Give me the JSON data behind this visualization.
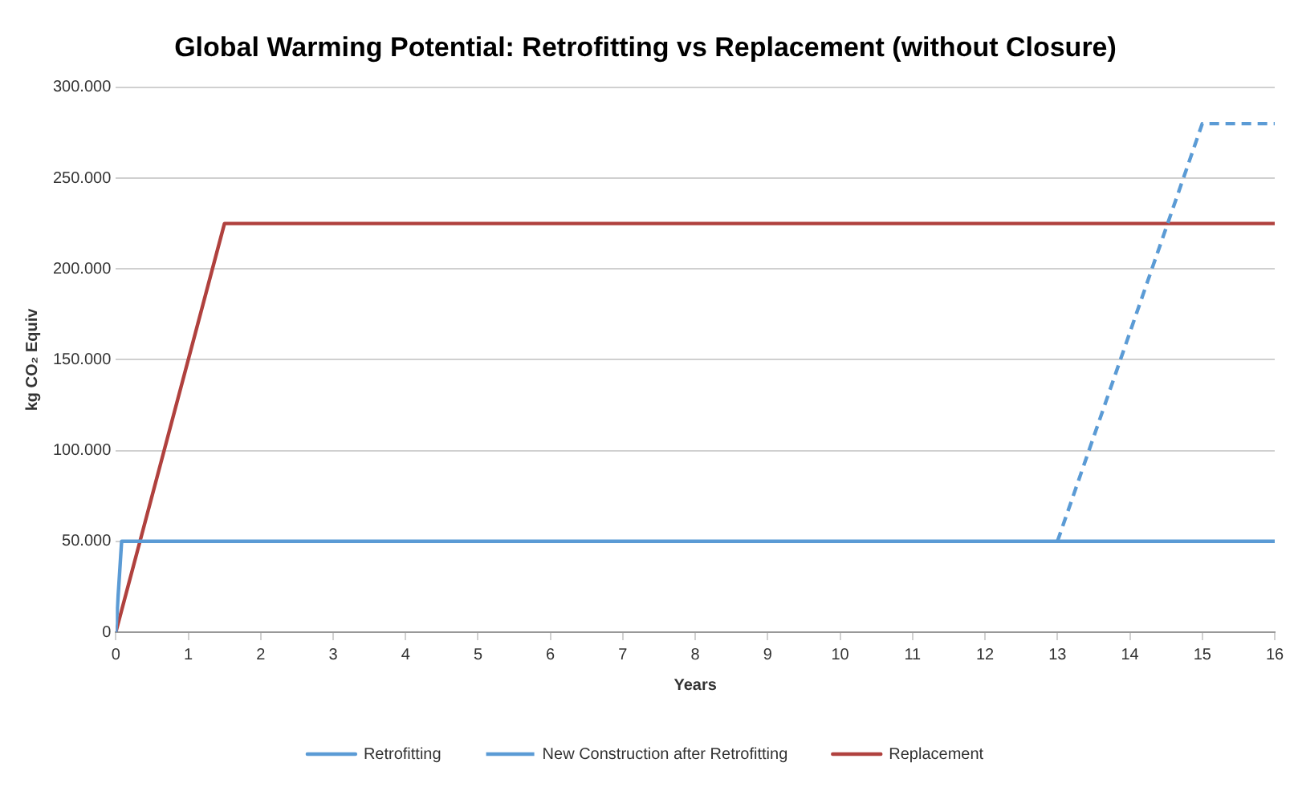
{
  "chart_data": {
    "type": "line",
    "title": "Global Warming Potential: Retrofitting vs Replacement (without Closure)",
    "xlabel": "Years",
    "ylabel": "kg CO₂ Equiv",
    "xlim": [
      0,
      16
    ],
    "xticks": [
      0,
      1,
      2,
      3,
      4,
      5,
      6,
      7,
      8,
      9,
      10,
      11,
      12,
      13,
      14,
      15,
      16
    ],
    "ylim": [
      0,
      300000
    ],
    "yticks": [
      {
        "value": 0,
        "label": "0"
      },
      {
        "value": 50000,
        "label": "50.000"
      },
      {
        "value": 100000,
        "label": "100.000"
      },
      {
        "value": 150000,
        "label": "150.000"
      },
      {
        "value": 200000,
        "label": "200.000"
      },
      {
        "value": 250000,
        "label": "250.000"
      },
      {
        "value": 300000,
        "label": "300.000"
      }
    ],
    "grid": "y",
    "legend": "bottom",
    "marker": "none",
    "series": [
      {
        "name": "Retrofitting",
        "color": "#5b9bd5",
        "line_style": "solid",
        "x": [
          0,
          0.08,
          16
        ],
        "values": [
          0,
          50000,
          50000
        ]
      },
      {
        "name": "New Construction after Retrofitting",
        "color": "#5b9bd5",
        "line_style": "dashed",
        "x": [
          13,
          15,
          16
        ],
        "values": [
          50000,
          280000,
          280000
        ]
      },
      {
        "name": "Replacement",
        "color": "#b0413e",
        "line_style": "solid",
        "x": [
          0,
          1.5,
          16
        ],
        "values": [
          0,
          225000,
          225000
        ]
      }
    ]
  }
}
